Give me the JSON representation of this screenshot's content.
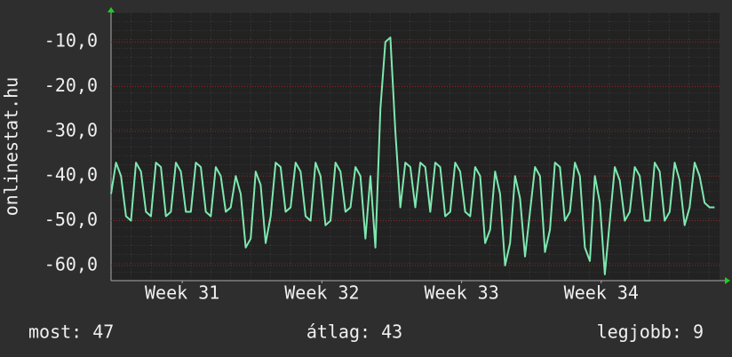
{
  "chart_data": {
    "type": "line",
    "y_label": "onlinestat.hu",
    "footer": [
      "most: 47",
      "átlag: 43",
      "legjobb: 9"
    ],
    "xlim": [
      0,
      30.5
    ],
    "xticks": [
      {
        "value": 3.57,
        "label": "Week 31"
      },
      {
        "value": 10.57,
        "label": "Week 32"
      },
      {
        "value": 17.57,
        "label": "Week 33"
      },
      {
        "value": 24.57,
        "label": "Week 34"
      }
    ],
    "ylim": [
      -63.4,
      -3.4
    ],
    "yticks": [
      {
        "value": -10,
        "label": "-10,0"
      },
      {
        "value": -20,
        "label": "-20,0"
      },
      {
        "value": -30,
        "label": "-30,0"
      },
      {
        "value": -40,
        "label": "-40,0"
      },
      {
        "value": -50,
        "label": "-50,0"
      },
      {
        "value": -60,
        "label": "-60,0"
      }
    ],
    "grid": true,
    "x": [
      0,
      0.25,
      0.5,
      0.75,
      1,
      1.25,
      1.5,
      1.75,
      2,
      2.25,
      2.5,
      2.75,
      3,
      3.25,
      3.5,
      3.75,
      4,
      4.25,
      4.5,
      4.75,
      5,
      5.25,
      5.5,
      5.75,
      6,
      6.25,
      6.5,
      6.75,
      7,
      7.25,
      7.5,
      7.75,
      8,
      8.25,
      8.5,
      8.75,
      9,
      9.25,
      9.5,
      9.75,
      10,
      10.25,
      10.5,
      10.75,
      11,
      11.25,
      11.5,
      11.75,
      12,
      12.25,
      12.5,
      12.75,
      13,
      13.25,
      13.5,
      13.75,
      14,
      14.25,
      14.5,
      14.75,
      15,
      15.25,
      15.5,
      15.75,
      16,
      16.25,
      16.5,
      16.75,
      17,
      17.25,
      17.5,
      17.75,
      18,
      18.25,
      18.5,
      18.75,
      19,
      19.25,
      19.5,
      19.75,
      20,
      20.25,
      20.5,
      20.75,
      21,
      21.25,
      21.5,
      21.75,
      22,
      22.25,
      22.5,
      22.75,
      23,
      23.25,
      23.5,
      23.75,
      24,
      24.25,
      24.5,
      24.75,
      25,
      25.25,
      25.5,
      25.75,
      26,
      26.25,
      26.5,
      26.75,
      27,
      27.25,
      27.5,
      27.75,
      28,
      28.25,
      28.5,
      28.75,
      29,
      29.25,
      29.5,
      29.75,
      30,
      30.25
    ],
    "series": [
      {
        "color": "#7ee8b0",
        "values": [
          -44,
          -37,
          -40,
          -49,
          -50,
          -37,
          -39,
          -48,
          -49,
          -37,
          -38,
          -49,
          -48,
          -37,
          -39,
          -48,
          -48,
          -37,
          -38,
          -48,
          -49,
          -38,
          -40,
          -48,
          -47,
          -40,
          -44,
          -56,
          -54,
          -39,
          -42,
          -55,
          -49,
          -37,
          -38,
          -48,
          -47,
          -37,
          -39,
          -49,
          -50,
          -37,
          -40,
          -51,
          -50,
          -37,
          -39,
          -48,
          -47,
          -38,
          -40,
          -54,
          -40,
          -56,
          -25,
          -10,
          -9,
          -30,
          -47,
          -37,
          -38,
          -47,
          -37,
          -38,
          -48,
          -37,
          -38,
          -49,
          -48,
          -37,
          -39,
          -48,
          -49,
          -38,
          -40,
          -55,
          -52,
          -39,
          -44,
          -60,
          -55,
          -40,
          -45,
          -58,
          -48,
          -38,
          -40,
          -57,
          -52,
          -37,
          -38,
          -50,
          -48,
          -37,
          -40,
          -56,
          -59,
          -40,
          -46,
          -62,
          -50,
          -38,
          -41,
          -50,
          -48,
          -38,
          -40,
          -50,
          -50,
          -37,
          -39,
          -50,
          -48,
          -37,
          -41,
          -51,
          -47,
          -37,
          -40,
          -46,
          -47,
          -47
        ]
      }
    ]
  }
}
